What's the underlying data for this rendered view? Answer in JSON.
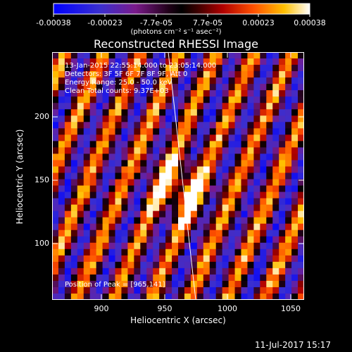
{
  "colorbar": {
    "ticks": [
      "-0.00038",
      "-0.00023",
      "-7.7e-05",
      "7.7e-05",
      "0.00023",
      "0.00038"
    ],
    "units_label": "(photons cm⁻² s⁻¹ asec⁻²)"
  },
  "title": "Reconstructed RHESSI Image",
  "info": {
    "line1": "13-Jan-2015 22:55:14.000 to 23:05:14.000",
    "line2": "Detectors: 3F 5F 6F 7F 8F 9F, Att 0",
    "line3": "Energy Range: 25.0 - 50.0 keV",
    "line4": "Clean    Total counts: 9.37E+03"
  },
  "peak_label": "Position of Peak = [965,141]",
  "axes": {
    "xlabel": "Heliocentric X (arcsec)",
    "ylabel": "Heliocentric Y (arcsec)",
    "x_ticks": [
      "900",
      "950",
      "1000",
      "1050"
    ],
    "y_ticks": [
      "100",
      "150",
      "200"
    ]
  },
  "timestamp": "11-Jul-2017 15:17"
}
